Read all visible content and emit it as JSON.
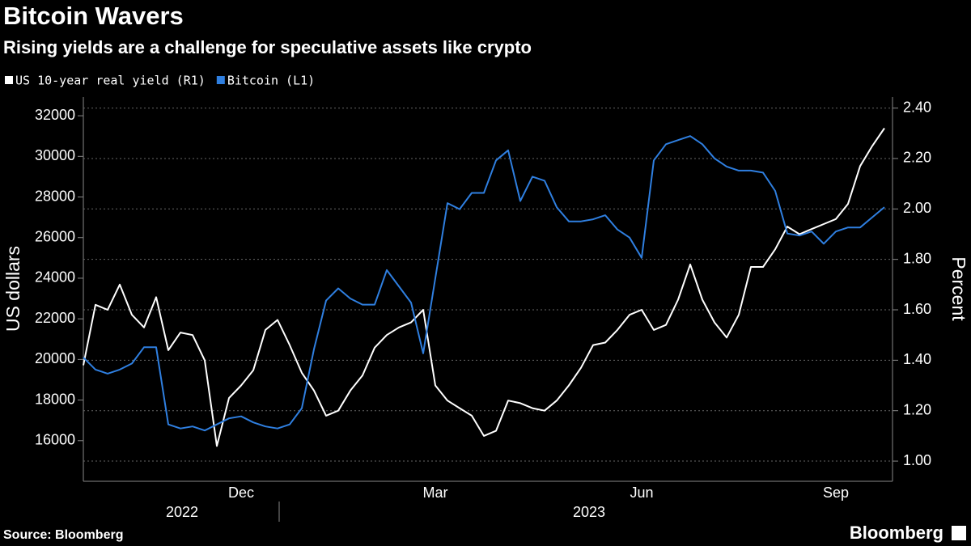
{
  "chart_data": {
    "type": "line",
    "title": "Bitcoin Wavers",
    "subtitle": "Rising yields are a challenge for speculative assets like crypto",
    "y_label": "US dollars",
    "y2_label": "Percent",
    "source": "Source: Bloomberg",
    "branding": "Bloomberg",
    "categories": [
      null,
      null,
      null,
      null,
      null,
      null,
      null,
      null,
      null,
      null,
      null,
      null,
      null,
      "Dec",
      null,
      null,
      null,
      null,
      null,
      null,
      null,
      null,
      null,
      null,
      null,
      null,
      null,
      null,
      null,
      "Mar",
      null,
      null,
      null,
      null,
      null,
      null,
      null,
      null,
      null,
      null,
      null,
      null,
      null,
      null,
      null,
      null,
      "Jun",
      null,
      null,
      null,
      null,
      null,
      null,
      null,
      null,
      null,
      null,
      null,
      null,
      null,
      null,
      null,
      "Sep",
      null,
      null,
      null,
      null
    ],
    "x_groups": [
      "2022",
      "2023"
    ],
    "series": [
      {
        "name": "US 10-year real yield (R1)",
        "color": "#ffffff",
        "axis": "y2",
        "values": [
          1.38,
          1.62,
          1.6,
          1.7,
          1.58,
          1.53,
          1.65,
          1.44,
          1.51,
          1.5,
          1.4,
          1.06,
          1.25,
          1.3,
          1.36,
          1.52,
          1.56,
          1.46,
          1.35,
          1.28,
          1.18,
          1.2,
          1.28,
          1.34,
          1.45,
          1.5,
          1.53,
          1.55,
          1.6,
          1.3,
          1.24,
          1.21,
          1.18,
          1.1,
          1.12,
          1.24,
          1.23,
          1.21,
          1.2,
          1.24,
          1.3,
          1.37,
          1.46,
          1.47,
          1.52,
          1.58,
          1.6,
          1.52,
          1.54,
          1.64,
          1.78,
          1.64,
          1.55,
          1.49,
          1.58,
          1.77,
          1.77,
          1.84,
          1.93,
          1.9,
          1.92,
          1.94,
          1.96,
          2.02,
          2.17,
          2.25,
          2.32
        ]
      },
      {
        "name": "Bitcoin (L1)",
        "color": "#2f7fe0",
        "values": [
          20100,
          19500,
          19300,
          19500,
          19800,
          20600,
          20600,
          16800,
          16600,
          16700,
          16500,
          16800,
          17100,
          17200,
          16900,
          16700,
          16600,
          16800,
          17600,
          20500,
          22900,
          23500,
          23000,
          22700,
          22700,
          24400,
          23600,
          22800,
          20300,
          24000,
          27700,
          27400,
          28200,
          28200,
          29800,
          30300,
          27800,
          29000,
          28800,
          27500,
          26800,
          26800,
          26900,
          27100,
          26400,
          26000,
          25000,
          29800,
          30600,
          30800,
          31000,
          30600,
          29900,
          29500,
          29300,
          29300,
          29200,
          28300,
          26200,
          26100,
          26300,
          25700,
          26300,
          26500,
          26500,
          27000,
          27500
        ]
      }
    ],
    "ylim": [
      14000,
      33000
    ],
    "yticks": [
      16000,
      18000,
      20000,
      22000,
      24000,
      26000,
      28000,
      30000,
      32000
    ],
    "y2lim": [
      0.92,
      2.45
    ],
    "y2ticks": [
      {
        "value": 1,
        "label": "1.00"
      },
      {
        "value": 1.2,
        "label": "1.20"
      },
      {
        "value": 1.4,
        "label": "1.40"
      },
      {
        "value": 1.6,
        "label": "1.60"
      },
      {
        "value": 1.8,
        "label": "1.80"
      },
      {
        "value": 2,
        "label": "2.00"
      },
      {
        "value": 2.2,
        "label": "2.20"
      },
      {
        "value": 2.4,
        "label": "2.40"
      }
    ],
    "grid": true
  }
}
